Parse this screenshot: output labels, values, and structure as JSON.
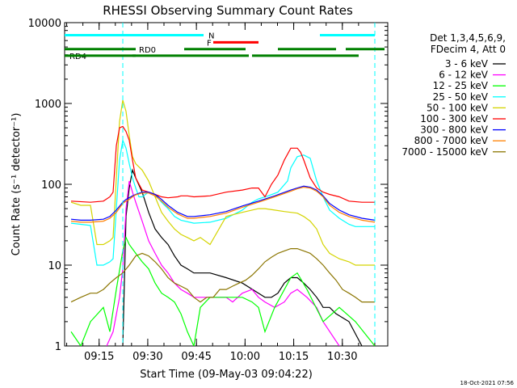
{
  "chart_data": {
    "type": "line",
    "title": "RHESSI Observing Summary Count Rates",
    "xlabel": "Start Time (09-May-03 09:04:22)",
    "ylabel": "Count Rate (s⁻¹ detector⁻¹)",
    "y_scale": "log",
    "ylim": [
      1,
      10000
    ],
    "y_ticks": [
      "1",
      "10",
      "100",
      "1000",
      "10000"
    ],
    "x_range": [
      "09:04:22",
      "10:44:00"
    ],
    "x_ticks": [
      "09:15",
      "09:30",
      "09:45",
      "10:00",
      "10:15",
      "10:30"
    ],
    "footer_date": "18-Oct-2021 07:56",
    "legend": {
      "position": "right",
      "header": [
        "Det 1,3,4,5,6,9,",
        "FDecim 4, Att 0"
      ],
      "entries": [
        {
          "label": "3 - 6 keV",
          "color": "#000000"
        },
        {
          "label": "6 - 12 keV",
          "color": "#ff00ff"
        },
        {
          "label": "12 - 25 keV",
          "color": "#00ff00"
        },
        {
          "label": "25 - 50 keV",
          "color": "#00ffff"
        },
        {
          "label": "50 - 100 keV",
          "color": "#d4d400"
        },
        {
          "label": "100 - 300 keV",
          "color": "#ff0000"
        },
        {
          "label": "300 - 800 keV",
          "color": "#0000ff"
        },
        {
          "label": "800 - 7000 keV",
          "color": "#ff8000"
        },
        {
          "label": "7000 - 15000 keV",
          "color": "#8b7500"
        }
      ]
    },
    "flag_bars": [
      {
        "label": "N",
        "color": "#00ffff",
        "level": 7000,
        "segments": [
          [
            0,
            43
          ],
          [
            79,
            96
          ]
        ]
      },
      {
        "label": "F",
        "color": "#ff0000",
        "level": 5700,
        "segments": [
          [
            46,
            60
          ]
        ]
      },
      {
        "label": "RD0",
        "color": "#008000",
        "level": 4700,
        "segments": [
          [
            0,
            22
          ],
          [
            37,
            56
          ],
          [
            66,
            84
          ],
          [
            87,
            99
          ]
        ]
      },
      {
        "label": "RD4",
        "color": "#008000",
        "level": 3900,
        "segments": [
          [
            0,
            22
          ],
          [
            21,
            57
          ],
          [
            58,
            91
          ]
        ]
      }
    ],
    "night_lines": [
      {
        "color": "#00ffff",
        "x": 18
      },
      {
        "color": "#00ffff",
        "x": 96
      }
    ],
    "series": [
      {
        "name": "3 - 6 keV",
        "color": "#000000",
        "x": [
          18,
          19,
          20,
          21,
          22,
          24,
          26,
          28,
          30,
          32,
          34,
          36,
          38,
          40,
          45,
          50,
          55,
          60,
          62,
          64,
          66,
          68,
          70,
          72,
          74,
          76,
          78,
          79,
          80,
          82,
          84,
          88,
          92
        ],
        "y": [
          1,
          40,
          90,
          150,
          120,
          80,
          45,
          28,
          22,
          18,
          13,
          10,
          9,
          8,
          8,
          7,
          6,
          4.5,
          4,
          4,
          4.5,
          6,
          7,
          7,
          6,
          5,
          4,
          3.5,
          3,
          3,
          2.5,
          2,
          1
        ]
      },
      {
        "name": "6 - 12 keV",
        "color": "#ff00ff",
        "x": [
          13,
          15,
          17,
          18,
          19,
          20,
          21,
          22,
          24,
          26,
          28,
          30,
          32,
          34,
          36,
          38,
          40,
          45,
          50,
          52,
          55,
          58,
          60,
          62,
          65,
          68,
          70,
          72,
          75,
          78,
          80,
          85
        ],
        "y": [
          1,
          1.5,
          4,
          9,
          50,
          110,
          80,
          60,
          35,
          20,
          14,
          10,
          8,
          6,
          5,
          4.5,
          4,
          4,
          4,
          3.5,
          4.5,
          5,
          4,
          3.5,
          3,
          3.5,
          4.5,
          5,
          4,
          3,
          2,
          1
        ]
      },
      {
        "name": "12 - 25 keV",
        "color": "#00ff00",
        "x": [
          2,
          5,
          8,
          12,
          14,
          16,
          18,
          19,
          20,
          22,
          24,
          26,
          28,
          30,
          32,
          34,
          36,
          38,
          40,
          42,
          45,
          50,
          55,
          58,
          60,
          62,
          65,
          70,
          72,
          75,
          80,
          85,
          90,
          96
        ],
        "y": [
          1.5,
          1,
          2,
          3,
          1.5,
          5,
          15,
          22,
          18,
          14,
          11,
          9,
          6,
          4.5,
          4,
          3.5,
          2.5,
          1.5,
          1,
          3,
          4,
          4,
          4,
          3.5,
          3,
          1.5,
          3,
          7,
          8,
          5,
          2,
          3,
          2,
          1
        ]
      },
      {
        "name": "25 - 50 keV",
        "color": "#00ffff",
        "x": [
          2,
          5,
          8,
          10,
          12,
          14,
          15,
          16,
          17,
          18,
          19,
          20,
          21,
          22,
          23,
          24,
          26,
          28,
          30,
          32,
          34,
          36,
          40,
          45,
          50,
          55,
          58,
          60,
          63,
          66,
          69,
          70,
          72,
          74,
          76,
          78,
          80,
          82,
          85,
          88,
          90,
          93,
          96
        ],
        "y": [
          33,
          32,
          31,
          10,
          10,
          11,
          12,
          50,
          200,
          350,
          280,
          180,
          120,
          90,
          70,
          70,
          80,
          75,
          60,
          50,
          40,
          36,
          33,
          34,
          38,
          48,
          60,
          66,
          72,
          80,
          110,
          160,
          220,
          230,
          210,
          110,
          70,
          48,
          38,
          32,
          30,
          30,
          30
        ]
      },
      {
        "name": "50 - 100 keV",
        "color": "#d4d400",
        "x": [
          2,
          5,
          8,
          10,
          12,
          14,
          15,
          16,
          17,
          18,
          19,
          20,
          21,
          22,
          24,
          26,
          28,
          30,
          32,
          34,
          36,
          38,
          40,
          42,
          45,
          50,
          52,
          55,
          58,
          60,
          62,
          65,
          68,
          70,
          72,
          74,
          76,
          78,
          80,
          82,
          85,
          88,
          90,
          96
        ],
        "y": [
          60,
          55,
          55,
          18,
          18,
          20,
          22,
          120,
          600,
          1100,
          800,
          400,
          220,
          180,
          150,
          110,
          70,
          45,
          35,
          28,
          24,
          22,
          20,
          22,
          18,
          40,
          42,
          45,
          48,
          50,
          50,
          48,
          46,
          45,
          44,
          40,
          35,
          28,
          18,
          14,
          12,
          11,
          10,
          10
        ]
      },
      {
        "name": "100 - 300 keV",
        "color": "#ff0000",
        "x": [
          2,
          8,
          12,
          14,
          15,
          16,
          17,
          18,
          19,
          20,
          21,
          22,
          24,
          26,
          28,
          30,
          32,
          35,
          36,
          38,
          40,
          45,
          50,
          55,
          58,
          60,
          62,
          64,
          66,
          68,
          70,
          72,
          73,
          74,
          76,
          78,
          80,
          82,
          85,
          88,
          92,
          96
        ],
        "y": [
          62,
          60,
          62,
          70,
          80,
          300,
          500,
          520,
          450,
          350,
          200,
          120,
          85,
          80,
          75,
          70,
          68,
          70,
          72,
          72,
          70,
          72,
          80,
          85,
          90,
          90,
          70,
          100,
          130,
          200,
          280,
          280,
          250,
          200,
          120,
          90,
          80,
          75,
          70,
          62,
          60,
          60
        ]
      },
      {
        "name": "300 - 800 keV",
        "color": "#0000ff",
        "x": [
          2,
          5,
          8,
          12,
          14,
          16,
          18,
          19,
          20,
          21,
          22,
          24,
          26,
          28,
          30,
          32,
          35,
          38,
          40,
          45,
          50,
          55,
          60,
          65,
          70,
          72,
          74,
          76,
          78,
          80,
          82,
          85,
          88,
          92,
          96
        ],
        "y": [
          37,
          36,
          36,
          37,
          40,
          48,
          60,
          65,
          68,
          72,
          75,
          80,
          80,
          75,
          65,
          55,
          45,
          40,
          40,
          42,
          46,
          54,
          62,
          72,
          85,
          90,
          95,
          92,
          85,
          72,
          58,
          48,
          42,
          38,
          36
        ]
      },
      {
        "name": "800 - 7000 keV",
        "color": "#ff8000",
        "x": [
          2,
          5,
          8,
          12,
          14,
          16,
          18,
          19,
          20,
          21,
          22,
          24,
          26,
          28,
          30,
          32,
          35,
          38,
          40,
          45,
          50,
          55,
          60,
          65,
          70,
          72,
          74,
          76,
          78,
          80,
          82,
          85,
          88,
          92,
          96
        ],
        "y": [
          35,
          34,
          34,
          35,
          38,
          45,
          58,
          62,
          65,
          70,
          74,
          78,
          78,
          72,
          62,
          52,
          43,
          38,
          38,
          40,
          44,
          52,
          60,
          70,
          82,
          88,
          92,
          90,
          82,
          70,
          55,
          45,
          40,
          36,
          34
        ]
      },
      {
        "name": "7000 - 15000 keV",
        "color": "#8b7500",
        "x": [
          2,
          5,
          8,
          10,
          12,
          14,
          16,
          18,
          20,
          22,
          24,
          26,
          28,
          30,
          32,
          34,
          36,
          38,
          40,
          42,
          44,
          46,
          48,
          50,
          52,
          54,
          56,
          58,
          60,
          62,
          64,
          66,
          68,
          70,
          72,
          74,
          76,
          78,
          80,
          82,
          84,
          86,
          88,
          90,
          92,
          96
        ],
        "y": [
          3.5,
          4,
          4.5,
          4.5,
          5,
          6,
          7,
          8,
          10,
          13,
          14,
          13,
          11,
          9,
          7,
          6,
          5.5,
          5,
          4,
          3.5,
          4,
          4,
          5,
          5,
          5.5,
          6,
          6.5,
          7.5,
          9,
          11,
          12.5,
          14,
          15,
          16,
          16,
          15,
          14,
          12,
          10,
          8,
          6.5,
          5,
          4.5,
          4,
          3.5,
          3.5
        ]
      }
    ]
  }
}
